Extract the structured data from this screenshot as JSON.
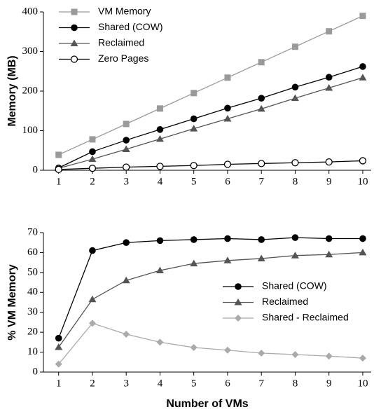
{
  "chart_data": [
    {
      "type": "line",
      "y_label": "Memory (MB)",
      "x": [
        1,
        2,
        3,
        4,
        5,
        6,
        7,
        8,
        9,
        10
      ],
      "xlim": [
        0.55,
        10.25
      ],
      "xticks": [
        1,
        2,
        3,
        4,
        5,
        6,
        7,
        8,
        9,
        10
      ],
      "ylim": [
        0,
        400
      ],
      "yticks": [
        0,
        100,
        200,
        300,
        400
      ],
      "legend": "upper left",
      "series": [
        {
          "name": "VM Memory",
          "color": "#9a9a9a",
          "marker": "square",
          "values": [
            39,
            78,
            117,
            156,
            195,
            234,
            273,
            312,
            351,
            390
          ]
        },
        {
          "name": "Shared (COW)",
          "color": "#000000",
          "marker": "circle",
          "values": [
            6,
            47,
            76,
            103,
            130,
            157,
            182,
            210,
            235,
            262
          ]
        },
        {
          "name": "Reclaimed",
          "color": "#555555",
          "marker": "triangle",
          "values": [
            5,
            28,
            53,
            79,
            105,
            130,
            155,
            182,
            208,
            234
          ]
        },
        {
          "name": "Zero Pages",
          "color": "#000000",
          "marker": "open-circle",
          "values": [
            2,
            5,
            8,
            10,
            12,
            15,
            17,
            19,
            21,
            24
          ]
        }
      ]
    },
    {
      "type": "line",
      "y_label": "% VM Memory",
      "x_label": "Number of VMs",
      "x": [
        1,
        2,
        3,
        4,
        5,
        6,
        7,
        8,
        9,
        10
      ],
      "xlim": [
        0.55,
        10.25
      ],
      "xticks": [
        1,
        2,
        3,
        4,
        5,
        6,
        7,
        8,
        9,
        10
      ],
      "ylim": [
        0,
        70
      ],
      "yticks": [
        0,
        10,
        20,
        30,
        40,
        50,
        60,
        70
      ],
      "legend": "center right",
      "series": [
        {
          "name": "Shared (COW)",
          "color": "#000000",
          "marker": "circle",
          "values": [
            17,
            61,
            65,
            66,
            66.5,
            67,
            66.5,
            67.5,
            67,
            67
          ]
        },
        {
          "name": "Reclaimed",
          "color": "#555555",
          "marker": "triangle",
          "values": [
            12.5,
            36.5,
            46,
            51,
            54.5,
            56,
            57,
            58.5,
            59,
            60
          ]
        },
        {
          "name": "Shared - Reclaimed",
          "color": "#aaaaaa",
          "marker": "diamond",
          "values": [
            4,
            24.5,
            19,
            15,
            12.3,
            11,
            9.5,
            8.8,
            8,
            7
          ]
        }
      ]
    }
  ]
}
